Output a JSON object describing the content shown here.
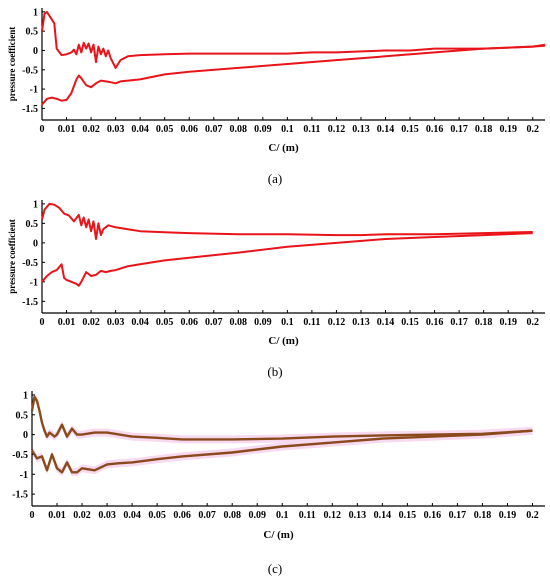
{
  "chart_data": [
    {
      "type": "line",
      "caption": "(a)",
      "xlabel": "C/  (m)",
      "ylabel": "pressure coefficient",
      "xlim": [
        0,
        0.205
      ],
      "ylim": [
        -1.8,
        1.1
      ],
      "xticks": [
        "0",
        "0.01",
        "0.02",
        "0.03",
        "0.04",
        "0.05",
        "0.06",
        "0.07",
        "0.08",
        "0.09",
        "0.1",
        "0.11",
        "0.12",
        "0.13",
        "0.14",
        "0.15",
        "0.16",
        "0.17",
        "0.18",
        "0.19",
        "0.2"
      ],
      "yticks": [
        "1",
        "0.5",
        "0",
        "-0.5",
        "-1",
        "-1.5"
      ],
      "line_color": "#e8141a",
      "series": [
        {
          "x": [
            0,
            0.001,
            0.002,
            0.003,
            0.005,
            0.006,
            0.008,
            0.01,
            0.012,
            0.013,
            0.014,
            0.015,
            0.016,
            0.017,
            0.018,
            0.019,
            0.02,
            0.021,
            0.022,
            0.023,
            0.024,
            0.025,
            0.026,
            0.027,
            0.028,
            0.03,
            0.032,
            0.035,
            0.04,
            0.05,
            0.06,
            0.08,
            0.1,
            0.11,
            0.12,
            0.14,
            0.15,
            0.16,
            0.18,
            0.2,
            0.205
          ],
          "y": [
            0.5,
            0.95,
            1.0,
            0.9,
            0.7,
            0.05,
            -0.12,
            -0.1,
            -0.05,
            0.02,
            -0.1,
            0.15,
            -0.05,
            0.2,
            0.05,
            0.18,
            -0.05,
            0.15,
            -0.3,
            0.1,
            -0.1,
            0.05,
            -0.15,
            0.0,
            -0.2,
            -0.45,
            -0.25,
            -0.15,
            -0.12,
            -0.1,
            -0.08,
            -0.08,
            -0.08,
            -0.05,
            -0.05,
            0.0,
            0.0,
            0.05,
            0.05,
            0.1,
            0.15
          ]
        },
        {
          "x": [
            0,
            0.002,
            0.004,
            0.006,
            0.008,
            0.01,
            0.012,
            0.014,
            0.015,
            0.016,
            0.018,
            0.02,
            0.022,
            0.024,
            0.026,
            0.028,
            0.03,
            0.032,
            0.035,
            0.04,
            0.05,
            0.06,
            0.08,
            0.1,
            0.12,
            0.14,
            0.16,
            0.18,
            0.2,
            0.205
          ],
          "y": [
            -1.4,
            -1.25,
            -1.22,
            -1.25,
            -1.3,
            -1.28,
            -1.1,
            -0.75,
            -0.65,
            -0.72,
            -0.9,
            -0.95,
            -0.85,
            -0.78,
            -0.8,
            -0.82,
            -0.85,
            -0.8,
            -0.78,
            -0.75,
            -0.62,
            -0.55,
            -0.45,
            -0.35,
            -0.25,
            -0.15,
            -0.05,
            0.05,
            0.1,
            0.12
          ]
        }
      ]
    },
    {
      "type": "line",
      "caption": "(b)",
      "xlabel": "C/  (m)",
      "ylabel": "pressure coefficient",
      "xlim": [
        0,
        0.205
      ],
      "ylim": [
        -1.8,
        1.1
      ],
      "xticks": [
        "0",
        "0.01",
        "0.02",
        "0.03",
        "0.04",
        "0.05",
        "0.06",
        "0.07",
        "0.08",
        "0.09",
        "0.1",
        "0.11",
        "0.12",
        "0.13",
        "0.14",
        "0.15",
        "0.16",
        "0.17",
        "0.18",
        "0.19",
        "0.2"
      ],
      "yticks": [
        "1",
        "0.5",
        "0",
        "-0.5",
        "-1",
        "-1.5"
      ],
      "line_color": "#e8141a",
      "series": [
        {
          "x": [
            0,
            0.001,
            0.003,
            0.005,
            0.007,
            0.009,
            0.011,
            0.013,
            0.015,
            0.016,
            0.017,
            0.018,
            0.019,
            0.02,
            0.021,
            0.022,
            0.023,
            0.024,
            0.025,
            0.027,
            0.03,
            0.035,
            0.04,
            0.05,
            0.06,
            0.08,
            0.1,
            0.12,
            0.13,
            0.14,
            0.15,
            0.16,
            0.18,
            0.2
          ],
          "y": [
            0.6,
            0.85,
            1.0,
            0.98,
            0.9,
            0.75,
            0.7,
            0.55,
            0.72,
            0.45,
            0.65,
            0.4,
            0.6,
            0.3,
            0.55,
            0.1,
            0.5,
            0.2,
            0.35,
            0.45,
            0.4,
            0.35,
            0.3,
            0.27,
            0.25,
            0.22,
            0.22,
            0.2,
            0.2,
            0.22,
            0.22,
            0.22,
            0.25,
            0.28
          ]
        },
        {
          "x": [
            0,
            0.002,
            0.004,
            0.006,
            0.008,
            0.009,
            0.01,
            0.012,
            0.014,
            0.015,
            0.016,
            0.018,
            0.02,
            0.022,
            0.024,
            0.026,
            0.028,
            0.03,
            0.035,
            0.04,
            0.05,
            0.06,
            0.08,
            0.1,
            0.12,
            0.14,
            0.16,
            0.18,
            0.2
          ],
          "y": [
            -1.0,
            -0.85,
            -0.75,
            -0.7,
            -0.55,
            -0.9,
            -0.95,
            -1.0,
            -1.05,
            -1.1,
            -1.0,
            -0.75,
            -0.85,
            -0.82,
            -0.72,
            -0.75,
            -0.72,
            -0.7,
            -0.6,
            -0.55,
            -0.45,
            -0.38,
            -0.25,
            -0.1,
            0.0,
            0.1,
            0.15,
            0.2,
            0.25
          ]
        }
      ]
    },
    {
      "type": "line",
      "caption": "(c)",
      "xlabel": "C/  (m)",
      "ylabel": "",
      "xlim": [
        0,
        0.205
      ],
      "ylim": [
        -1.8,
        1.1
      ],
      "xticks": [
        "0",
        "0.01",
        "0.02",
        "0.03",
        "0.04",
        "0.05",
        "0.06",
        "0.07",
        "0.08",
        "0.09",
        "0.1",
        "0.11",
        "0.12",
        "0.13",
        "0.14",
        "0.15",
        "0.16",
        "0.17",
        "0.18",
        "0.19",
        "0.2"
      ],
      "yticks": [
        "1",
        "0.5",
        "0",
        "-0.5",
        "-1",
        "-1.5"
      ],
      "line_color": "#8a4a1c",
      "series": [
        {
          "x": [
            0,
            0.001,
            0.002,
            0.003,
            0.004,
            0.005,
            0.006,
            0.007,
            0.008,
            0.009,
            0.01,
            0.012,
            0.014,
            0.016,
            0.018,
            0.02,
            0.025,
            0.03,
            0.04,
            0.05,
            0.06,
            0.08,
            0.1,
            0.12,
            0.14,
            0.16,
            0.18,
            0.2
          ],
          "y": [
            0.6,
            0.95,
            0.85,
            0.6,
            0.3,
            0.1,
            -0.05,
            0.05,
            0.0,
            -0.05,
            0.0,
            0.25,
            -0.05,
            0.15,
            0.0,
            0.0,
            0.05,
            0.05,
            -0.05,
            -0.08,
            -0.12,
            -0.12,
            -0.1,
            -0.05,
            -0.02,
            0.0,
            0.02,
            0.1
          ]
        },
        {
          "x": [
            0,
            0.002,
            0.004,
            0.006,
            0.008,
            0.01,
            0.012,
            0.014,
            0.016,
            0.018,
            0.02,
            0.025,
            0.03,
            0.035,
            0.04,
            0.05,
            0.06,
            0.08,
            0.1,
            0.12,
            0.14,
            0.16,
            0.18,
            0.2
          ],
          "y": [
            -0.4,
            -0.6,
            -0.55,
            -0.9,
            -0.5,
            -0.85,
            -0.95,
            -0.7,
            -0.95,
            -0.95,
            -0.85,
            -0.9,
            -0.75,
            -0.72,
            -0.7,
            -0.62,
            -0.55,
            -0.45,
            -0.3,
            -0.2,
            -0.1,
            -0.05,
            0.0,
            0.1
          ]
        }
      ]
    }
  ]
}
